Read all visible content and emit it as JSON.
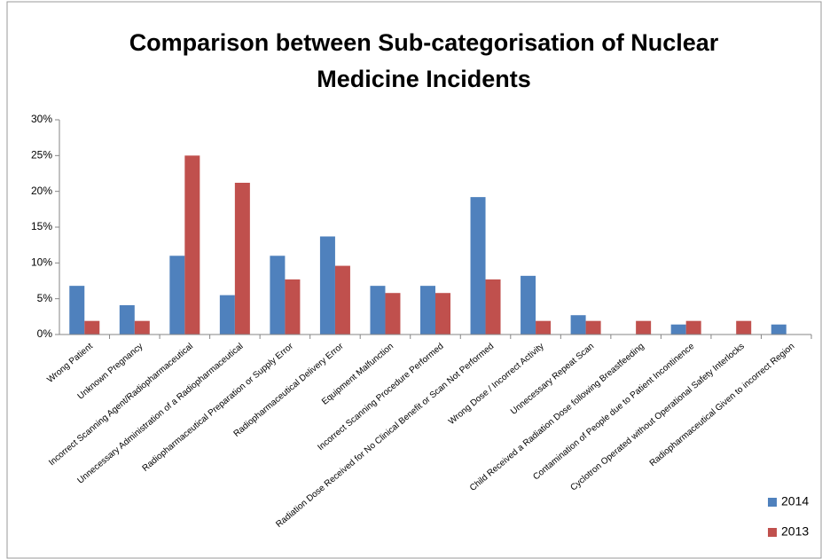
{
  "chart_data": {
    "type": "bar",
    "title": "Comparison between Sub-categorisation of Nuclear Medicine Incidents",
    "categories": [
      "Wrong Patient",
      "Unknown Pregnancy",
      "Incorrect Scanning Agent/Radiopharmaceutical",
      "Unnecessary Administration of a Radiopharmaceutical",
      "Radiopharmaceutical Preparation or Supply Error",
      "Radiopharmaceutical Delivery Error",
      "Equipment Malfunction",
      "Incorrect Scanning Procedure Performed",
      "Radiation Dose Received for No Clinical Benefit or Scan Not Performed",
      "Wrong Dose / Incorrect Activity",
      "Unnecessary Repeat Scan",
      "Child Received a Radiation Dose following Breastfeeding",
      "Contamination of People due to Patient Incontinence",
      "Cyclotron Operated without Operational Safety Interlocks",
      "Radiopharmaceutical Given to incorrect Region"
    ],
    "series": [
      {
        "name": "2014",
        "color": "#4f81bd",
        "values": [
          6.8,
          4.1,
          11.0,
          5.5,
          11.0,
          13.7,
          6.8,
          6.8,
          19.2,
          8.2,
          2.7,
          0,
          1.4,
          0,
          1.4
        ]
      },
      {
        "name": "2013",
        "color": "#c0504d",
        "values": [
          1.9,
          1.9,
          25.0,
          21.2,
          7.7,
          9.6,
          5.8,
          5.8,
          7.7,
          1.9,
          1.9,
          1.9,
          1.9,
          1.9,
          0
        ]
      }
    ],
    "ylim": [
      0,
      30
    ],
    "yticks": [
      {
        "value": 0,
        "label": "0%"
      },
      {
        "value": 5,
        "label": "5%"
      },
      {
        "value": 10,
        "label": "10%"
      },
      {
        "value": 15,
        "label": "15%"
      },
      {
        "value": 20,
        "label": "20%"
      },
      {
        "value": 25,
        "label": "25%"
      },
      {
        "value": 30,
        "label": "30%"
      }
    ],
    "grid": false,
    "legend": "bottom-right"
  }
}
